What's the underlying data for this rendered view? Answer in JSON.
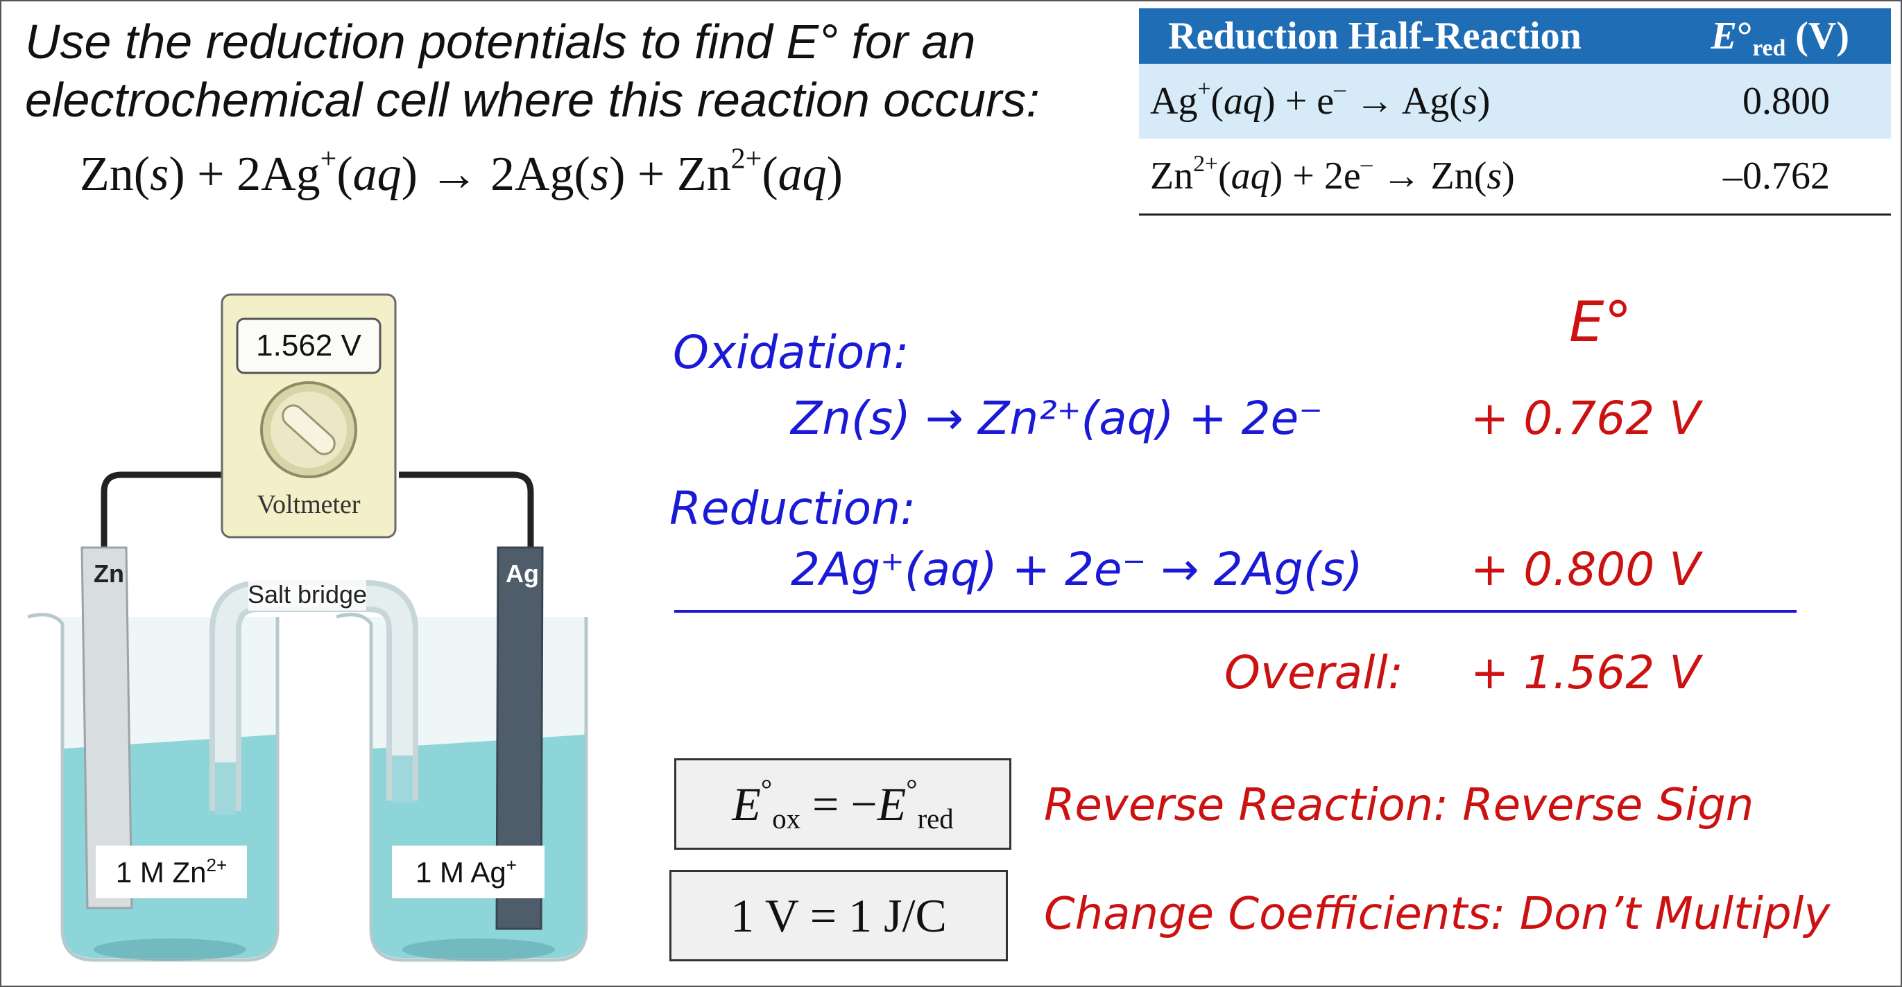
{
  "prompt": {
    "line1": "Use the reduction potentials to find E° for an",
    "line2": "electrochemical cell where this reaction occurs:"
  },
  "reaction": {
    "zn": "Zn(",
    "zn_s": "s",
    "zn_close": ") + 2Ag",
    "ag_sup": "+",
    "ag_open": "(",
    "ag_aq": "aq",
    "ag_close": ") → 2Ag(",
    "ag_s": "s",
    "mid": ") + Zn",
    "zn_sup": "2+",
    "zn_open": "(",
    "zn_aq": "aq",
    "end": ")"
  },
  "table": {
    "header_reaction": "Reduction Half-Reaction",
    "header_e": "E",
    "header_deg": "°",
    "header_sub": "red",
    "header_unit": " (V)",
    "rows": [
      {
        "pre": "Ag",
        "sup1": "+",
        "mid": "(",
        "state1": "aq",
        "mid2": ") + e",
        "sup2": "–",
        "mid3": " → Ag(",
        "state2": "s",
        "end": ")",
        "value": "0.800"
      },
      {
        "pre": "Zn",
        "sup1": "2+",
        "mid": "(",
        "state1": "aq",
        "mid2": ") + 2e",
        "sup2": "–",
        "mid3": " → Zn(",
        "state2": "s",
        "end": ")",
        "value": "–0.762"
      }
    ]
  },
  "apparatus": {
    "voltmeter_reading": "1.562 V",
    "voltmeter_label": "Voltmeter",
    "left_electrode": "Zn",
    "right_electrode": "Ag",
    "salt_bridge": "Salt bridge",
    "left_solution": "1 M Zn",
    "left_solution_sup": "2+",
    "right_solution": "1 M Ag",
    "right_solution_sup": "+"
  },
  "work": {
    "e_header": "E°",
    "oxidation_label": "Oxidation:",
    "oxidation_eq": "Zn(s) → Zn²⁺(aq) + 2e⁻",
    "oxidation_value": "+ 0.762 V",
    "reduction_label": "Reduction:",
    "reduction_eq": "2Ag⁺(aq) + 2e⁻ → 2Ag(s)",
    "reduction_value": "+ 0.800 V",
    "overall_label": "Overall:",
    "overall_value": "+ 1.562 V"
  },
  "rules": {
    "box1_e1": "E",
    "box1_deg": "°",
    "box1_sub1": "ox",
    "box1_mid": " = −",
    "box1_e2": "E",
    "box1_sub2": "red",
    "box1_note": "Reverse Reaction: Reverse Sign",
    "box2_text": "1 V = 1 J/C",
    "box2_note": "Change Coefficients: Don’t Multiply"
  },
  "colors": {
    "table_header": "#1f6db5",
    "table_row": "#d6eaf8",
    "ink_blue": "#1a1ad6",
    "ink_red": "#cc1111",
    "solution": "#7ccfd3"
  }
}
